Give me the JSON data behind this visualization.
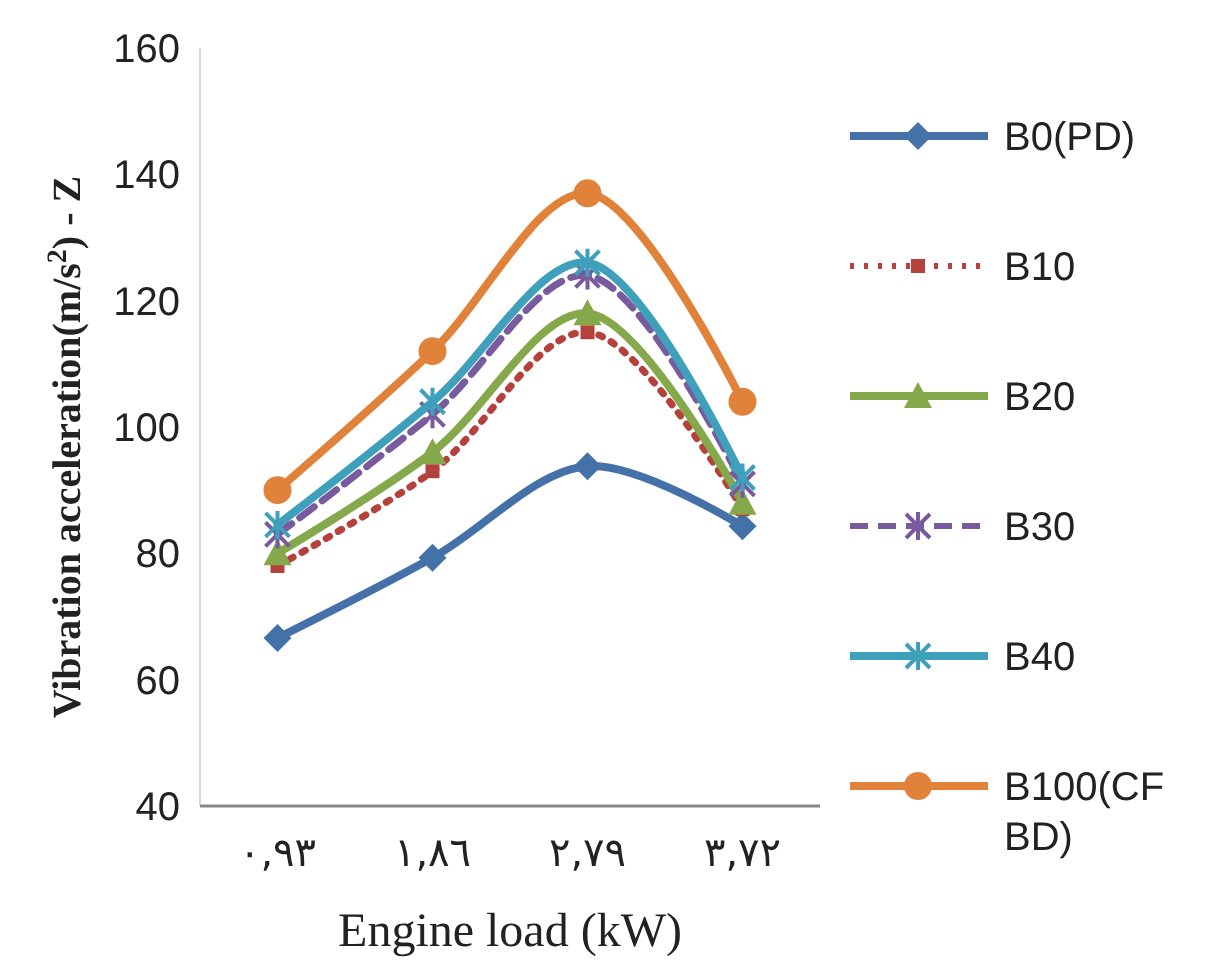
{
  "chart_data": {
    "type": "line",
    "xlabel": "Engine load (kW)",
    "ylabel": "Vibration acceleration(m/s$^{2}$) - Z",
    "categories": [
      "٠,٩٣",
      "١,٨٦",
      "٢,٧٩",
      "٣,٧٢"
    ],
    "ylim": [
      40,
      160
    ],
    "yticks": [
      40,
      60,
      80,
      100,
      120,
      140,
      160
    ],
    "grid": false,
    "legend": "right",
    "series": [
      {
        "name": "B0(PD)",
        "color": "#4472a8",
        "marker": "diamond",
        "line_style": "solid",
        "values": [
          66.6,
          79.3,
          93.8,
          84.3
        ]
      },
      {
        "name": "B10",
        "color": "#b5413d",
        "marker": "square",
        "line_style": "dotted",
        "values": [
          78,
          93,
          115,
          87
        ]
      },
      {
        "name": "B20",
        "color": "#84a84a",
        "marker": "triangle",
        "line_style": "solid",
        "values": [
          80,
          96,
          118,
          88
        ]
      },
      {
        "name": "B30",
        "color": "#7a5a9e",
        "marker": "cross",
        "line_style": "dashed",
        "values": [
          83,
          102,
          124,
          91
        ]
      },
      {
        "name": "B40",
        "color": "#3ea0ba",
        "marker": "cross",
        "line_style": "solid",
        "values": [
          84.5,
          104,
          126,
          92
        ]
      },
      {
        "name": "B100(CF BD)",
        "color": "#e0823a",
        "marker": "circle",
        "line_style": "solid",
        "values": [
          90,
          112,
          137,
          104
        ]
      }
    ]
  }
}
